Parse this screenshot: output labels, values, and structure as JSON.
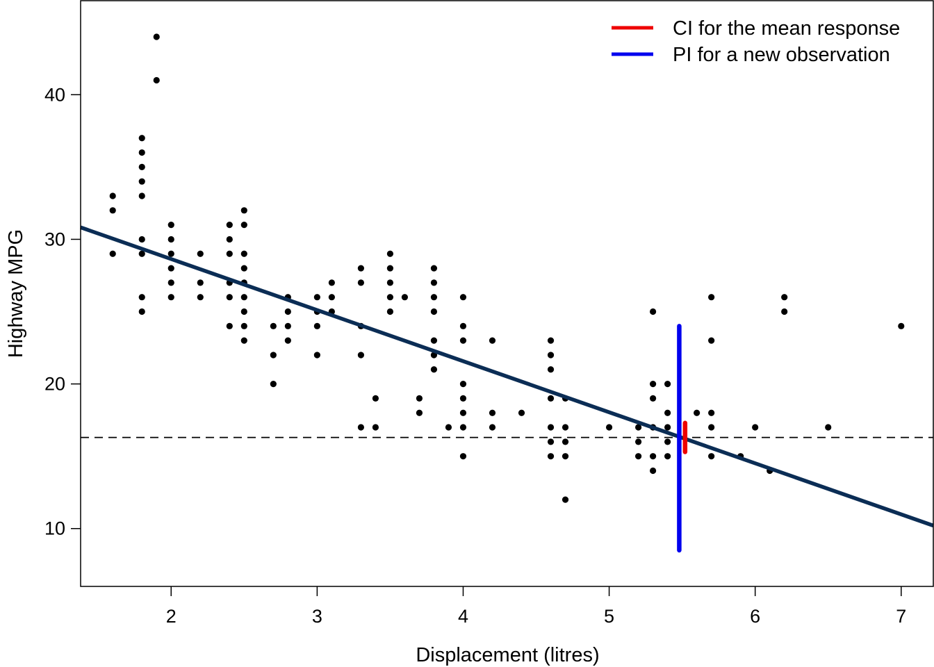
{
  "chart_data": {
    "type": "scatter",
    "title": "",
    "xlabel": "Displacement (litres)",
    "ylabel": "Highway MPG",
    "xlim": [
      1.38,
      7.22
    ],
    "ylim": [
      6,
      46.5
    ],
    "x_ticks": [
      2,
      3,
      4,
      5,
      6,
      7
    ],
    "y_ticks": [
      10,
      20,
      30,
      40
    ],
    "grid": false,
    "legend_position": "top-right",
    "colors": {
      "points": "#000000",
      "fit_line": "#0b2d55",
      "ci": "#ee0000",
      "pi": "#0000ee",
      "reference": "#000000"
    },
    "points": [
      [
        1.6,
        33
      ],
      [
        1.6,
        32
      ],
      [
        1.6,
        29
      ],
      [
        1.8,
        37
      ],
      [
        1.8,
        36
      ],
      [
        1.8,
        35
      ],
      [
        1.8,
        34
      ],
      [
        1.8,
        33
      ],
      [
        1.8,
        30
      ],
      [
        1.8,
        29
      ],
      [
        1.8,
        26
      ],
      [
        1.8,
        25
      ],
      [
        1.9,
        44
      ],
      [
        1.9,
        41
      ],
      [
        2.0,
        31
      ],
      [
        2.0,
        30
      ],
      [
        2.0,
        29
      ],
      [
        2.0,
        28
      ],
      [
        2.0,
        27
      ],
      [
        2.0,
        26
      ],
      [
        2.2,
        29
      ],
      [
        2.2,
        27
      ],
      [
        2.2,
        26
      ],
      [
        2.4,
        31
      ],
      [
        2.4,
        30
      ],
      [
        2.4,
        29
      ],
      [
        2.4,
        27
      ],
      [
        2.4,
        26
      ],
      [
        2.4,
        24
      ],
      [
        2.5,
        32
      ],
      [
        2.5,
        31
      ],
      [
        2.5,
        29
      ],
      [
        2.5,
        28
      ],
      [
        2.5,
        27
      ],
      [
        2.5,
        26
      ],
      [
        2.5,
        25
      ],
      [
        2.5,
        24
      ],
      [
        2.5,
        23
      ],
      [
        2.7,
        24
      ],
      [
        2.7,
        22
      ],
      [
        2.7,
        20
      ],
      [
        2.8,
        26
      ],
      [
        2.8,
        25
      ],
      [
        2.8,
        24
      ],
      [
        2.8,
        23
      ],
      [
        3.0,
        26
      ],
      [
        3.0,
        25
      ],
      [
        3.0,
        24
      ],
      [
        3.0,
        22
      ],
      [
        3.1,
        27
      ],
      [
        3.1,
        26
      ],
      [
        3.1,
        25
      ],
      [
        3.3,
        28
      ],
      [
        3.3,
        27
      ],
      [
        3.3,
        24
      ],
      [
        3.3,
        22
      ],
      [
        3.3,
        17
      ],
      [
        3.4,
        19
      ],
      [
        3.4,
        17
      ],
      [
        3.5,
        29
      ],
      [
        3.5,
        28
      ],
      [
        3.5,
        27
      ],
      [
        3.5,
        26
      ],
      [
        3.5,
        25
      ],
      [
        3.6,
        26
      ],
      [
        3.7,
        19
      ],
      [
        3.7,
        18
      ],
      [
        3.8,
        28
      ],
      [
        3.8,
        27
      ],
      [
        3.8,
        26
      ],
      [
        3.8,
        25
      ],
      [
        3.8,
        23
      ],
      [
        3.8,
        22
      ],
      [
        3.8,
        21
      ],
      [
        3.9,
        17
      ],
      [
        4.0,
        26
      ],
      [
        4.0,
        24
      ],
      [
        4.0,
        23
      ],
      [
        4.0,
        20
      ],
      [
        4.0,
        19
      ],
      [
        4.0,
        18
      ],
      [
        4.0,
        17
      ],
      [
        4.0,
        15
      ],
      [
        4.2,
        23
      ],
      [
        4.2,
        18
      ],
      [
        4.2,
        17
      ],
      [
        4.4,
        18
      ],
      [
        4.6,
        23
      ],
      [
        4.6,
        22
      ],
      [
        4.6,
        21
      ],
      [
        4.6,
        19
      ],
      [
        4.6,
        17
      ],
      [
        4.6,
        16
      ],
      [
        4.6,
        15
      ],
      [
        4.7,
        19
      ],
      [
        4.7,
        17
      ],
      [
        4.7,
        16
      ],
      [
        4.7,
        15
      ],
      [
        4.7,
        12
      ],
      [
        5.0,
        17
      ],
      [
        5.2,
        17
      ],
      [
        5.2,
        16
      ],
      [
        5.2,
        15
      ],
      [
        5.3,
        25
      ],
      [
        5.3,
        20
      ],
      [
        5.3,
        19
      ],
      [
        5.3,
        17
      ],
      [
        5.3,
        15
      ],
      [
        5.3,
        14
      ],
      [
        5.4,
        20
      ],
      [
        5.4,
        18
      ],
      [
        5.4,
        17
      ],
      [
        5.4,
        16
      ],
      [
        5.4,
        15
      ],
      [
        5.6,
        18
      ],
      [
        5.7,
        26
      ],
      [
        5.7,
        23
      ],
      [
        5.7,
        18
      ],
      [
        5.7,
        17
      ],
      [
        5.7,
        15
      ],
      [
        5.9,
        15
      ],
      [
        6.0,
        17
      ],
      [
        6.1,
        14
      ],
      [
        6.2,
        26
      ],
      [
        6.2,
        25
      ],
      [
        6.5,
        17
      ],
      [
        7.0,
        24
      ]
    ],
    "fit_line": {
      "intercept": 35.698,
      "slope": -3.531
    },
    "reference_line_y": 16.3,
    "ci": {
      "x": 5.52,
      "low": 15.3,
      "high": 17.3
    },
    "pi": {
      "x": 5.48,
      "low": 8.5,
      "high": 24.0
    },
    "legend": [
      {
        "label": "CI for the mean response",
        "color": "#ee0000"
      },
      {
        "label": "PI for a new observation",
        "color": "#0000ee"
      }
    ]
  }
}
